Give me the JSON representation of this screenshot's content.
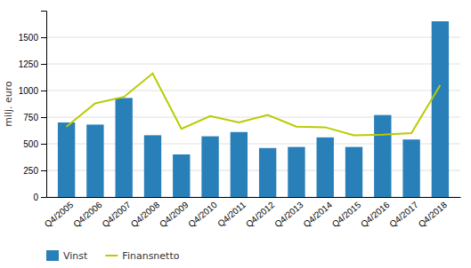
{
  "chart_data": {
    "type": "bar",
    "categories": [
      "Q4/2005",
      "Q4/2006",
      "Q4/2007",
      "Q4/2008",
      "Q4/2009",
      "Q4/2010",
      "Q4/2011",
      "Q4/2012",
      "Q4/2013",
      "Q4/2014",
      "Q4/2015",
      "Q4/2016",
      "Q4/2017",
      "Q4/2018"
    ],
    "series": [
      {
        "name": "Vinst",
        "type": "bar",
        "color": "#2980b9",
        "values": [
          700,
          680,
          930,
          580,
          400,
          570,
          610,
          460,
          470,
          560,
          470,
          770,
          540,
          1650
        ]
      },
      {
        "name": "Finansnetto",
        "type": "line",
        "color": "#b8cc00",
        "values": [
          660,
          880,
          940,
          1160,
          640,
          760,
          700,
          770,
          660,
          655,
          580,
          585,
          600,
          1050
        ]
      }
    ],
    "ylabel": "milj. euro",
    "ylim": [
      0,
      1750
    ],
    "yticks": [
      0,
      250,
      500,
      750,
      1000,
      1250,
      1500
    ],
    "grid": true,
    "legend": "bottom"
  }
}
